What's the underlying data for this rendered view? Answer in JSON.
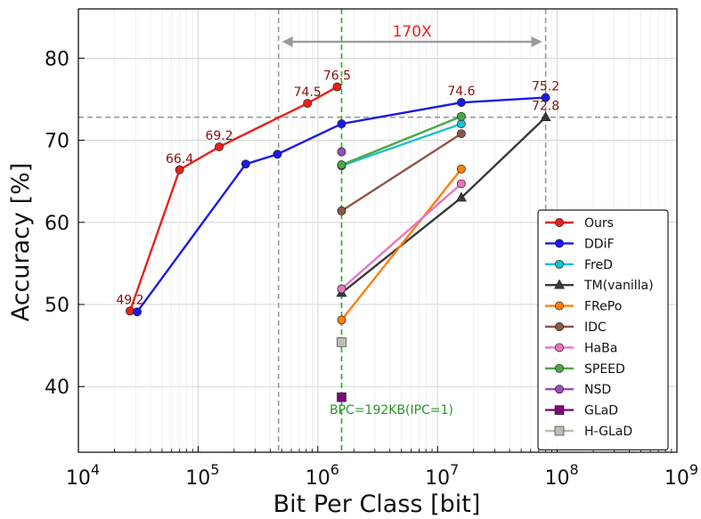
{
  "chart_data": {
    "type": "line",
    "xscale": "log",
    "xlim": [
      10000,
      1000000000
    ],
    "ylim": [
      32,
      86
    ],
    "xlabel": "Bit Per Class [bit]",
    "ylabel": "Accuracy [%]",
    "xticks": [
      {
        "value": 10000,
        "base": "10",
        "exp": "4"
      },
      {
        "value": 100000,
        "base": "10",
        "exp": "5"
      },
      {
        "value": 1000000,
        "base": "10",
        "exp": "6"
      },
      {
        "value": 10000000,
        "base": "10",
        "exp": "7"
      },
      {
        "value": 100000000,
        "base": "10",
        "exp": "8"
      },
      {
        "value": 1000000000,
        "base": "10",
        "exp": "9"
      }
    ],
    "yticks": [
      40,
      50,
      60,
      70,
      80
    ],
    "grid": true,
    "legend_position": "lower-right",
    "series": [
      {
        "name": "Ours",
        "color": "#e8211c",
        "marker": "circle",
        "x": [
          27000,
          70000,
          150000,
          820000,
          1450000
        ],
        "y": [
          49.2,
          66.4,
          69.2,
          74.5,
          76.5
        ],
        "labels": [
          "49.2",
          "66.4",
          "69.2",
          "74.5",
          "76.5"
        ]
      },
      {
        "name": "DDiF",
        "color": "#1a1ae6",
        "marker": "circle",
        "x": [
          31000,
          250000,
          460000,
          1580000,
          15800000,
          80000000
        ],
        "y": [
          49.1,
          67.1,
          68.3,
          72.0,
          74.6,
          75.2
        ],
        "labels": [
          "",
          "",
          "",
          "",
          "74.6",
          "75.2"
        ]
      },
      {
        "name": "FreD",
        "color": "#1fbfcf",
        "marker": "circle",
        "x": [
          1580000,
          15800000
        ],
        "y": [
          66.9,
          72.0
        ]
      },
      {
        "name": "TM(vanilla)",
        "color": "#3a3a3a",
        "marker": "triangle",
        "x": [
          1580000,
          15800000,
          80000000
        ],
        "y": [
          51.4,
          63.0,
          72.8
        ],
        "labels": [
          "",
          "",
          "72.8"
        ]
      },
      {
        "name": "FRePo",
        "color": "#ff7f0e",
        "marker": "circle",
        "x": [
          1580000,
          15800000
        ],
        "y": [
          48.1,
          66.5
        ]
      },
      {
        "name": "IDC",
        "color": "#8c564b",
        "marker": "circle",
        "x": [
          1580000,
          15800000
        ],
        "y": [
          61.4,
          70.8
        ]
      },
      {
        "name": "HaBa",
        "color": "#e377c2",
        "marker": "circle",
        "x": [
          1580000,
          15800000
        ],
        "y": [
          51.9,
          64.7
        ]
      },
      {
        "name": "SPEED",
        "color": "#4aa84a",
        "marker": "circle",
        "x": [
          1580000,
          15800000
        ],
        "y": [
          67.0,
          72.9
        ]
      },
      {
        "name": "NSD",
        "color": "#9a4fb5",
        "marker": "circle",
        "x": [
          1580000
        ],
        "y": [
          68.6
        ]
      },
      {
        "name": "GLaD",
        "color": "#7b0a7b",
        "marker": "square",
        "x": [
          1580000
        ],
        "y": [
          38.7
        ]
      },
      {
        "name": "H-GLaD",
        "color": "#bdbdb3",
        "marker": "square",
        "x": [
          1580000
        ],
        "y": [
          45.4
        ]
      }
    ],
    "annotations": {
      "ratio_label": "170X",
      "ratio_from_x": 470000,
      "ratio_to_x": 80000000,
      "ratio_y": 82,
      "hline_y": 72.8,
      "vline_x": 1580000,
      "vline_label": "BPC=192KB(IPC=1)",
      "vline_label_y": 37.3,
      "ref_vlines_x": [
        470000,
        80000000
      ]
    },
    "colors": {
      "annotation_red": "#e8211c",
      "label_dark_red": "#8b0d0d",
      "vline_green": "#3cb03c",
      "vline_label_green": "#2a962a",
      "guide_gray": "#9a9a9a"
    }
  }
}
